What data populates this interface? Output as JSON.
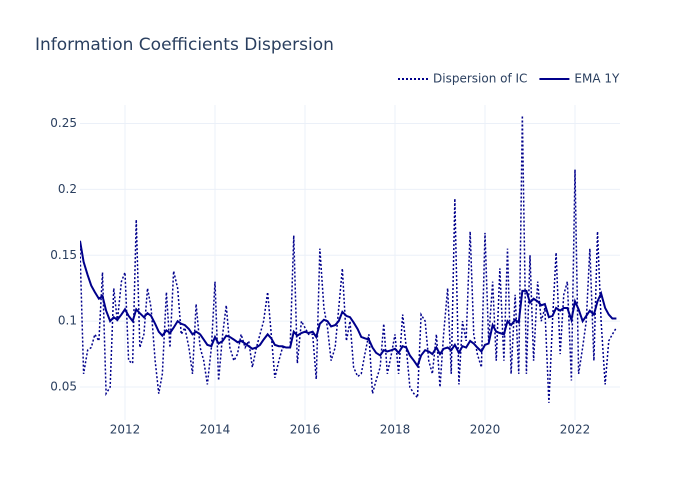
{
  "chart_data": {
    "type": "line",
    "title": "Information Coefficients Dispersion",
    "x": [
      2011,
      2011.08,
      2011.17,
      2011.25,
      2011.33,
      2011.42,
      2011.5,
      2011.58,
      2011.67,
      2011.75,
      2011.83,
      2011.92,
      2012,
      2012.08,
      2012.17,
      2012.25,
      2012.33,
      2012.42,
      2012.5,
      2012.58,
      2012.67,
      2012.75,
      2012.83,
      2012.92,
      2013,
      2013.08,
      2013.17,
      2013.25,
      2013.33,
      2013.42,
      2013.5,
      2013.58,
      2013.67,
      2013.75,
      2013.83,
      2013.92,
      2014,
      2014.08,
      2014.17,
      2014.25,
      2014.33,
      2014.42,
      2014.5,
      2014.58,
      2014.67,
      2014.75,
      2014.83,
      2014.92,
      2015,
      2015.08,
      2015.17,
      2015.25,
      2015.33,
      2015.42,
      2015.5,
      2015.58,
      2015.67,
      2015.75,
      2015.83,
      2015.92,
      2016,
      2016.08,
      2016.17,
      2016.25,
      2016.33,
      2016.42,
      2016.5,
      2016.58,
      2016.67,
      2016.75,
      2016.83,
      2016.92,
      2017,
      2017.08,
      2017.17,
      2017.25,
      2017.33,
      2017.42,
      2017.5,
      2017.58,
      2017.67,
      2017.75,
      2017.83,
      2017.92,
      2018,
      2018.08,
      2018.17,
      2018.25,
      2018.33,
      2018.42,
      2018.5,
      2018.58,
      2018.67,
      2018.75,
      2018.83,
      2018.92,
      2019,
      2019.08,
      2019.17,
      2019.25,
      2019.33,
      2019.42,
      2019.5,
      2019.58,
      2019.67,
      2019.75,
      2019.83,
      2019.92,
      2020,
      2020.08,
      2020.17,
      2020.25,
      2020.33,
      2020.42,
      2020.5,
      2020.58,
      2020.67,
      2020.75,
      2020.83,
      2020.92,
      2021,
      2021.08,
      2021.17,
      2021.25,
      2021.33,
      2021.42,
      2021.5,
      2021.58,
      2021.67,
      2021.75,
      2021.83,
      2021.92,
      2022,
      2022.08,
      2022.17,
      2022.25,
      2022.33,
      2022.42,
      2022.5,
      2022.58,
      2022.67,
      2022.75,
      2022.83,
      2022.92
    ],
    "series": [
      {
        "name": "Dispersion of IC",
        "color": "#00008b",
        "dash": "dot",
        "values": [
          0.155,
          0.06,
          0.078,
          0.08,
          0.09,
          0.085,
          0.137,
          0.045,
          0.05,
          0.125,
          0.1,
          0.13,
          0.137,
          0.07,
          0.068,
          0.177,
          0.08,
          0.09,
          0.125,
          0.11,
          0.07,
          0.045,
          0.06,
          0.122,
          0.08,
          0.138,
          0.125,
          0.09,
          0.095,
          0.08,
          0.06,
          0.113,
          0.08,
          0.07,
          0.052,
          0.08,
          0.13,
          0.055,
          0.09,
          0.112,
          0.08,
          0.07,
          0.075,
          0.09,
          0.08,
          0.085,
          0.065,
          0.08,
          0.09,
          0.1,
          0.122,
          0.09,
          0.057,
          0.07,
          0.08,
          0.08,
          0.08,
          0.165,
          0.068,
          0.1,
          0.095,
          0.09,
          0.09,
          0.056,
          0.155,
          0.11,
          0.095,
          0.07,
          0.08,
          0.11,
          0.14,
          0.085,
          0.1,
          0.065,
          0.058,
          0.06,
          0.075,
          0.09,
          0.045,
          0.055,
          0.065,
          0.098,
          0.06,
          0.075,
          0.09,
          0.06,
          0.105,
          0.08,
          0.05,
          0.045,
          0.042,
          0.105,
          0.1,
          0.07,
          0.06,
          0.09,
          0.05,
          0.09,
          0.125,
          0.06,
          0.193,
          0.052,
          0.1,
          0.085,
          0.168,
          0.09,
          0.075,
          0.065,
          0.167,
          0.085,
          0.13,
          0.07,
          0.14,
          0.07,
          0.155,
          0.06,
          0.12,
          0.06,
          0.256,
          0.06,
          0.15,
          0.07,
          0.13,
          0.1,
          0.11,
          0.038,
          0.1,
          0.152,
          0.075,
          0.12,
          0.13,
          0.055,
          0.215,
          0.06,
          0.08,
          0.1,
          0.155,
          0.07,
          0.168,
          0.1,
          0.052,
          0.085,
          0.09,
          0.095
        ]
      },
      {
        "name": "EMA 1Y",
        "color": "#00008b",
        "dash": "solid",
        "values": [
          0.161,
          0.145,
          0.135,
          0.127,
          0.122,
          0.117,
          0.119,
          0.108,
          0.1,
          0.103,
          0.101,
          0.105,
          0.109,
          0.104,
          0.1,
          0.109,
          0.106,
          0.103,
          0.106,
          0.104,
          0.098,
          0.092,
          0.089,
          0.093,
          0.091,
          0.095,
          0.1,
          0.098,
          0.097,
          0.094,
          0.09,
          0.092,
          0.09,
          0.086,
          0.082,
          0.081,
          0.088,
          0.083,
          0.085,
          0.089,
          0.088,
          0.086,
          0.084,
          0.085,
          0.083,
          0.081,
          0.079,
          0.08,
          0.082,
          0.086,
          0.09,
          0.087,
          0.082,
          0.081,
          0.081,
          0.08,
          0.08,
          0.092,
          0.089,
          0.091,
          0.092,
          0.091,
          0.092,
          0.088,
          0.098,
          0.101,
          0.1,
          0.096,
          0.097,
          0.1,
          0.107,
          0.104,
          0.103,
          0.099,
          0.094,
          0.088,
          0.087,
          0.086,
          0.08,
          0.076,
          0.074,
          0.078,
          0.077,
          0.078,
          0.079,
          0.076,
          0.081,
          0.08,
          0.074,
          0.07,
          0.066,
          0.074,
          0.078,
          0.077,
          0.075,
          0.08,
          0.075,
          0.079,
          0.08,
          0.078,
          0.082,
          0.076,
          0.081,
          0.08,
          0.085,
          0.083,
          0.08,
          0.077,
          0.082,
          0.083,
          0.097,
          0.092,
          0.091,
          0.09,
          0.1,
          0.097,
          0.101,
          0.099,
          0.123,
          0.123,
          0.114,
          0.117,
          0.115,
          0.112,
          0.113,
          0.103,
          0.104,
          0.11,
          0.108,
          0.11,
          0.11,
          0.101,
          0.115,
          0.109,
          0.1,
          0.104,
          0.108,
          0.105,
          0.115,
          0.121,
          0.11,
          0.105,
          0.102,
          0.102
        ]
      }
    ],
    "xlim": [
      2011,
      2023
    ],
    "xticks": [
      2012,
      2014,
      2016,
      2018,
      2020,
      2022
    ],
    "ylim": [
      0.025,
      0.264
    ],
    "yticks": [
      0.05,
      0.1,
      0.15,
      0.2,
      0.25
    ],
    "grid": true,
    "legend_position": "top-right"
  }
}
